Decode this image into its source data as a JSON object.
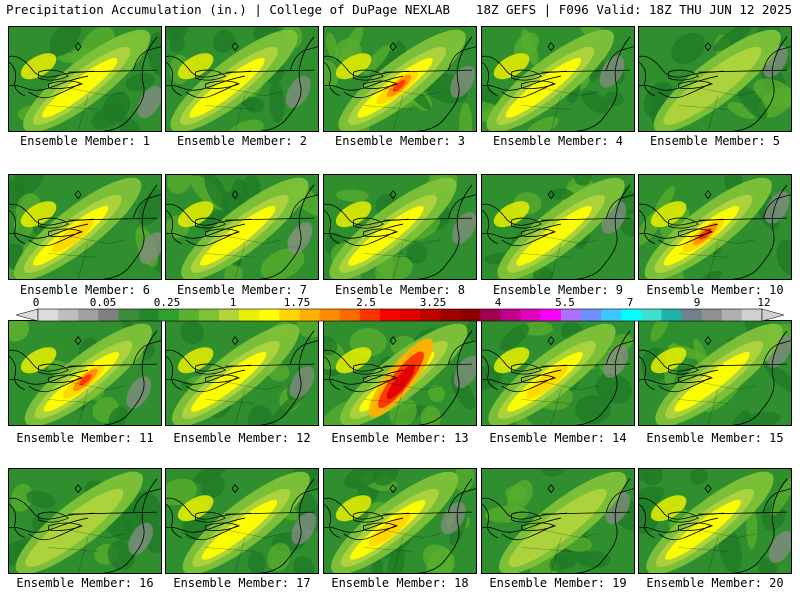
{
  "header": {
    "left": "Precipitation Accumulation (in.) | College of DuPage NEXLAB",
    "right": "18Z GEFS | F096 Valid: 18Z THU JUN 12 2025"
  },
  "members": [
    {
      "label": "Ensemble Member: 1",
      "level": 2
    },
    {
      "label": "Ensemble Member: 2",
      "level": 2
    },
    {
      "label": "Ensemble Member: 3",
      "level": 4
    },
    {
      "label": "Ensemble Member: 4",
      "level": 2
    },
    {
      "label": "Ensemble Member: 5",
      "level": 1
    },
    {
      "label": "Ensemble Member: 6",
      "level": 3
    },
    {
      "label": "Ensemble Member: 7",
      "level": 2
    },
    {
      "label": "Ensemble Member: 8",
      "level": 2
    },
    {
      "label": "Ensemble Member: 9",
      "level": 2
    },
    {
      "label": "Ensemble Member: 10",
      "level": 4
    },
    {
      "label": "Ensemble Member: 11",
      "level": 4
    },
    {
      "label": "Ensemble Member: 12",
      "level": 2
    },
    {
      "label": "Ensemble Member: 13",
      "level": 5
    },
    {
      "label": "Ensemble Member: 14",
      "level": 3
    },
    {
      "label": "Ensemble Member: 15",
      "level": 2
    },
    {
      "label": "Ensemble Member: 16",
      "level": 1
    },
    {
      "label": "Ensemble Member: 17",
      "level": 2
    },
    {
      "label": "Ensemble Member: 18",
      "level": 3
    },
    {
      "label": "Ensemble Member: 19",
      "level": 1
    },
    {
      "label": "Ensemble Member: 20",
      "level": 2
    }
  ],
  "colorbar": {
    "labels": [
      "0",
      "0.05",
      "0.25",
      "1",
      "1.75",
      "2.5",
      "3.25",
      "4",
      "5.5",
      "7",
      "9",
      "12"
    ],
    "colors": [
      "#dcdcdc",
      "#bebebe",
      "#a0a0a0",
      "#7f7f7f",
      "#3c8c3c",
      "#26872a",
      "#2ea02e",
      "#5ab030",
      "#7ec238",
      "#b0d43c",
      "#e8f000",
      "#ffff00",
      "#ffd700",
      "#ffb000",
      "#ff8c00",
      "#ff6a00",
      "#ff3300",
      "#ff0000",
      "#e00000",
      "#c00000",
      "#a00000",
      "#8a0000",
      "#a00050",
      "#c0008a",
      "#e000c0",
      "#ff00ff",
      "#b070ff",
      "#7090ff",
      "#3cc8ff",
      "#00ffff",
      "#40e0d0",
      "#20b2aa",
      "#708090",
      "#909090",
      "#b0b0b0",
      "#d0d0d0"
    ]
  }
}
